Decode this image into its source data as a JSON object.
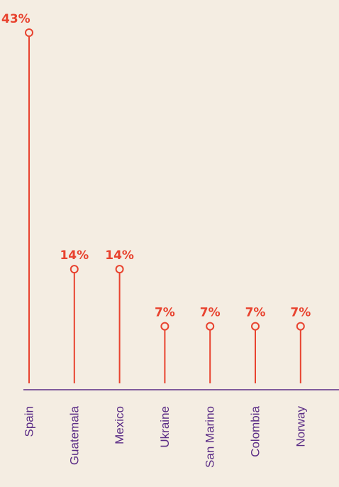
{
  "colors": {
    "background": "#f4ede2",
    "stem": "#e8432f",
    "label": "#e8432f",
    "axis": "#5b2d86",
    "category": "#5b2d86"
  },
  "chart_data": {
    "type": "lollipop",
    "title": "",
    "xlabel": "",
    "ylabel": "",
    "value_suffix": "%",
    "ylim": [
      0,
      43
    ],
    "grid": false,
    "categories": [
      "Spain",
      "Guatemala",
      "Mexico",
      "Ukraine",
      "San Marino",
      "Colombia",
      "Norway"
    ],
    "values": [
      43,
      14,
      14,
      7,
      7,
      7,
      7
    ],
    "value_labels": [
      "43%",
      "14%",
      "14%",
      "7%",
      "7%",
      "7%",
      "7%"
    ]
  }
}
